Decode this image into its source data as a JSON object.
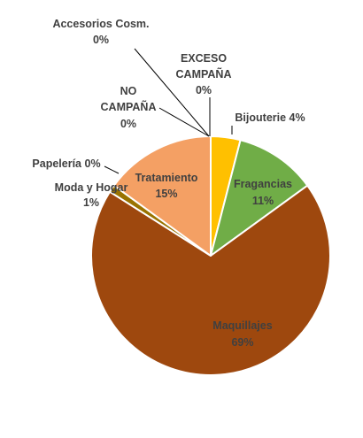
{
  "chart_data": {
    "type": "pie",
    "title": "",
    "slices": [
      {
        "label": "Bijouterie",
        "value": 4,
        "value_text": "4%",
        "label_text": "Bijouterie 4%",
        "color": "#FFC000"
      },
      {
        "label": "Fragancias",
        "value": 11,
        "value_text": "11%",
        "color": "#70AD47"
      },
      {
        "label": "Maquillajes",
        "value": 69,
        "value_text": "69%",
        "color": "#9E480E"
      },
      {
        "label": "Moda y Hogar",
        "value": 1,
        "value_text": "1%",
        "color": "#997300"
      },
      {
        "label": "Papelería",
        "value": 0,
        "value_text": "0%",
        "label_text": "Papelería 0%",
        "color": "#4472C4"
      },
      {
        "label": "Tratamiento",
        "value": 15,
        "value_text": "15%",
        "color": "#F4A064"
      },
      {
        "label": "NO CAMPAÑA",
        "value": 0,
        "value_text": "0%",
        "color": "#5B9BD5"
      },
      {
        "label": "Accesorios Cosm.",
        "value": 0,
        "value_text": "0%",
        "color": "#A5A5A5"
      },
      {
        "label": "EXCESO CAMPAÑA",
        "value": 0,
        "value_text": "0%",
        "color": "#264478"
      }
    ],
    "start_angle_deg": 0,
    "direction": "clockwise",
    "legend": "none",
    "data_labels": "category and percentage"
  },
  "colors": {
    "label_text": "#404040",
    "leader_line": "#000000",
    "slice_border": "#ffffff"
  }
}
